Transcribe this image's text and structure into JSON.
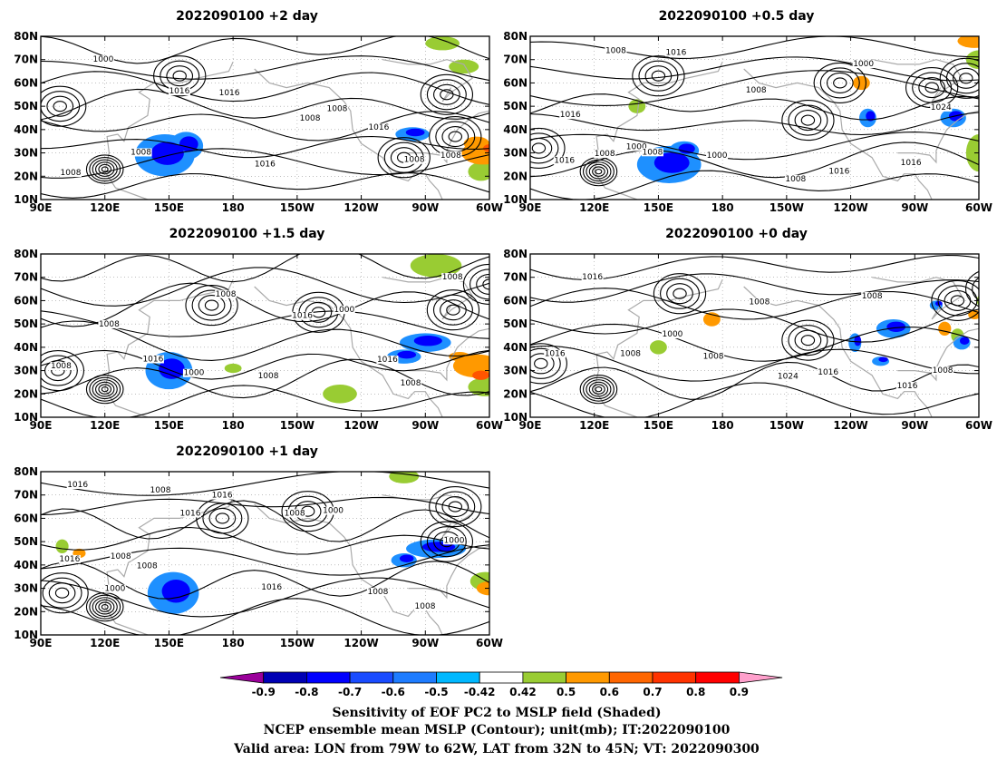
{
  "panels": [
    {
      "id": "p2",
      "title": "2022090100 +2 day",
      "contour_labels": [
        "1008",
        "1000",
        "1008",
        "1016",
        "1016",
        "1016",
        "1008",
        "1008",
        "1016",
        "1008",
        "1008"
      ],
      "lows": [
        [
          120,
          23
        ],
        [
          155,
          63
        ],
        [
          99,
          50
        ],
        [
          -100,
          28
        ],
        [
          -80,
          55
        ],
        [
          -76,
          37
        ]
      ],
      "blue": [
        [
          148,
          29,
          14,
          9
        ],
        [
          158,
          33,
          8,
          6
        ],
        [
          -96,
          38,
          8,
          3
        ]
      ],
      "green": [
        [
          -64,
          22,
          6,
          4
        ],
        [
          -82,
          77,
          8,
          3
        ],
        [
          -72,
          67,
          7,
          3
        ]
      ],
      "orange": [
        [
          -63,
          30,
          10,
          5
        ],
        [
          -66,
          34,
          6,
          3
        ]
      ],
      "red": [
        [
          -58,
          32,
          5,
          2
        ]
      ]
    },
    {
      "id": "p05",
      "title": "2022090100 +0.5 day",
      "contour_labels": [
        "1016",
        "1008",
        "1000",
        "1016",
        "1000",
        "1008",
        "1008",
        "1016",
        "1000",
        "1016",
        "1024",
        "1016",
        "1008",
        "1008"
      ],
      "lows": [
        [
          122,
          22
        ],
        [
          150,
          63
        ],
        [
          -140,
          44
        ],
        [
          -125,
          60
        ],
        [
          -82,
          58
        ],
        [
          -66,
          62
        ],
        [
          94,
          32
        ]
      ],
      "blue": [
        [
          155,
          25,
          15,
          8
        ],
        [
          162,
          31,
          7,
          4
        ],
        [
          -112,
          45,
          4,
          4
        ],
        [
          -72,
          45,
          6,
          4
        ]
      ],
      "green": [
        [
          -60,
          30,
          6,
          8
        ],
        [
          -55,
          18,
          4,
          4
        ],
        [
          -60,
          70,
          6,
          4
        ],
        [
          140,
          50,
          4,
          3
        ]
      ],
      "orange": [
        [
          -54,
          27,
          5,
          6
        ],
        [
          -62,
          78,
          8,
          3
        ],
        [
          -115,
          60,
          4,
          3
        ]
      ],
      "red": [
        [
          -56,
          25,
          3,
          3
        ]
      ]
    },
    {
      "id": "p15",
      "title": "2022090100 +1.5 day",
      "contour_labels": [
        "1008",
        "1008",
        "1016",
        "1000",
        "1008",
        "1008",
        "1016",
        "1000",
        "1016",
        "1008",
        "1008"
      ],
      "lows": [
        [
          120,
          22
        ],
        [
          170,
          58
        ],
        [
          -140,
          55
        ],
        [
          -77,
          56
        ],
        [
          -60,
          67
        ],
        [
          98,
          30
        ]
      ],
      "blue": [
        [
          150,
          30,
          11,
          8
        ],
        [
          -90,
          42,
          12,
          4
        ],
        [
          -100,
          36,
          8,
          3
        ]
      ],
      "green": [
        [
          -85,
          75,
          12,
          5
        ],
        [
          -130,
          20,
          8,
          4
        ],
        [
          -62,
          23,
          8,
          4
        ],
        [
          180,
          31,
          4,
          2
        ]
      ],
      "orange": [
        [
          -66,
          32,
          11,
          5
        ],
        [
          -74,
          36,
          5,
          2
        ]
      ],
      "red": [
        [
          -64,
          28,
          4,
          2
        ]
      ]
    },
    {
      "id": "p0",
      "title": "2022090100 +0 day",
      "contour_labels": [
        "1016",
        "1016",
        "1008",
        "1000",
        "1008",
        "1008",
        "1024",
        "1016",
        "1008",
        "1016",
        "1008"
      ],
      "lows": [
        [
          122,
          22
        ],
        [
          160,
          63
        ],
        [
          -140,
          43
        ],
        [
          -70,
          60
        ],
        [
          -54,
          65
        ],
        [
          95,
          33
        ]
      ],
      "blue": [
        [
          -100,
          48,
          8,
          4
        ],
        [
          -118,
          42,
          3,
          4
        ],
        [
          -80,
          58,
          3,
          2
        ],
        [
          -106,
          34,
          4,
          2
        ],
        [
          -68,
          42,
          4,
          3
        ]
      ],
      "green": [
        [
          -70,
          45,
          3,
          3
        ],
        [
          -58,
          60,
          3,
          3
        ],
        [
          150,
          40,
          4,
          3
        ]
      ],
      "orange": [
        [
          -76,
          48,
          3,
          3
        ],
        [
          175,
          52,
          4,
          3
        ],
        [
          -62,
          54,
          3,
          2
        ]
      ],
      "red": []
    },
    {
      "id": "p1",
      "title": "2022090100 +1 day",
      "contour_labels": [
        "1016",
        "1000",
        "1008",
        "1016",
        "1016",
        "1016",
        "1008",
        "1000",
        "1008",
        "1008",
        "1000",
        "1016",
        "1008",
        "1008"
      ],
      "lows": [
        [
          120,
          22
        ],
        [
          175,
          60
        ],
        [
          -145,
          63
        ],
        [
          -80,
          50
        ],
        [
          -76,
          65
        ],
        [
          100,
          28
        ]
      ],
      "blue": [
        [
          152,
          28,
          12,
          9
        ],
        [
          -85,
          47,
          14,
          4
        ],
        [
          -100,
          42,
          6,
          3
        ]
      ],
      "green": [
        [
          -62,
          33,
          7,
          4
        ],
        [
          -100,
          78,
          7,
          3
        ],
        [
          100,
          48,
          3,
          3
        ]
      ],
      "orange": [
        [
          -60,
          30,
          6,
          3
        ],
        [
          108,
          45,
          3,
          2
        ]
      ],
      "red": []
    }
  ],
  "axes": {
    "lon_labels": [
      "90E",
      "120E",
      "150E",
      "180",
      "150W",
      "120W",
      "90W",
      "60W"
    ],
    "lat_labels": [
      "10N",
      "20N",
      "30N",
      "40N",
      "50N",
      "60N",
      "70N",
      "80N"
    ],
    "lon_range": [
      90,
      300
    ],
    "lat_range": [
      10,
      80
    ]
  },
  "colorbar": {
    "labels": [
      "-0.9",
      "-0.8",
      "-0.7",
      "-0.6",
      "-0.5",
      "-0.42",
      "0.42",
      "0.5",
      "0.6",
      "0.7",
      "0.8",
      "0.9"
    ],
    "colors": [
      "#9a009a",
      "#0000b4",
      "#0000ff",
      "#1a4cff",
      "#1e7cff",
      "#00b8ff",
      "#00d4ff",
      "#ffffff",
      "#99cc33",
      "#ff9900",
      "#ff6600",
      "#ff3300",
      "#ff0000",
      "#ffa0cc"
    ]
  },
  "footer": {
    "line1": "Sensitivity of EOF PC2 to MSLP field (Shaded)",
    "line2": "NCEP ensemble mean MSLP (Contour); unit(mb); IT:2022090100",
    "line3": "Valid area: LON from 79W to 62W, LAT from 32N to 45N; VT: 2022090300"
  }
}
